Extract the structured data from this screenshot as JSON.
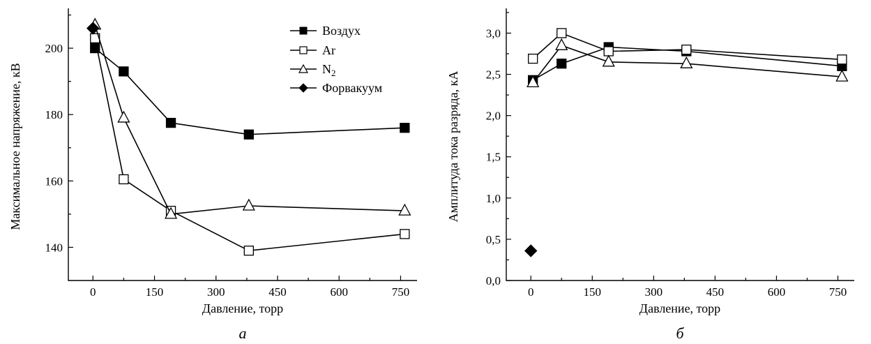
{
  "chart_data": [
    {
      "type": "line",
      "panel_label": "а",
      "xlabel": "Давление, торр",
      "ylabel": "Максимальное напряжение, кВ",
      "xlim": [
        -60,
        790
      ],
      "ylim": [
        130,
        212
      ],
      "xticks": [
        0,
        150,
        300,
        450,
        600,
        750
      ],
      "yticks": [
        140,
        160,
        180,
        200
      ],
      "ytick_labels": [
        "140",
        "160",
        "180",
        "200"
      ],
      "legend_position": "top-right",
      "series": [
        {
          "name": "Воздух",
          "marker": "filled-square",
          "x": [
            5,
            75,
            190,
            380,
            760
          ],
          "y": [
            200,
            193,
            177.5,
            174,
            176
          ]
        },
        {
          "name": "Ar",
          "marker": "open-square",
          "x": [
            5,
            75,
            190,
            380,
            760
          ],
          "y": [
            203,
            160.5,
            151,
            139,
            144
          ]
        },
        {
          "name": "N2",
          "marker": "open-triangle",
          "x": [
            5,
            75,
            190,
            380,
            760
          ],
          "y": [
            207,
            179,
            150,
            152.5,
            151
          ]
        },
        {
          "name": "Форвакуум",
          "marker": "filled-diamond",
          "x": [
            0
          ],
          "y": [
            206
          ]
        }
      ]
    },
    {
      "type": "line",
      "panel_label": "б",
      "xlabel": "Давление, торр",
      "ylabel": "Амплитуда тока разряда, кА",
      "xlim": [
        -60,
        790
      ],
      "ylim": [
        0,
        3.3
      ],
      "xticks": [
        0,
        150,
        300,
        450,
        600,
        750
      ],
      "yticks": [
        0,
        0.5,
        1.0,
        1.5,
        2.0,
        2.5,
        3.0
      ],
      "ytick_labels": [
        "0,0",
        "0,5",
        "1,0",
        "1,5",
        "2,0",
        "2,5",
        "3,0"
      ],
      "series": [
        {
          "name": "Воздух",
          "marker": "filled-square",
          "x": [
            5,
            75,
            190,
            380,
            760
          ],
          "y": [
            2.43,
            2.63,
            2.83,
            2.78,
            2.6
          ]
        },
        {
          "name": "Ar",
          "marker": "open-square",
          "x": [
            5,
            75,
            190,
            380,
            760
          ],
          "y": [
            2.69,
            3.0,
            2.78,
            2.8,
            2.68
          ]
        },
        {
          "name": "N2",
          "marker": "open-triangle",
          "x": [
            5,
            75,
            190,
            380,
            760
          ],
          "y": [
            2.4,
            2.85,
            2.65,
            2.63,
            2.47
          ]
        },
        {
          "name": "Форвакуум",
          "marker": "filled-diamond",
          "x": [
            0
          ],
          "y": [
            0.36
          ]
        }
      ]
    }
  ]
}
